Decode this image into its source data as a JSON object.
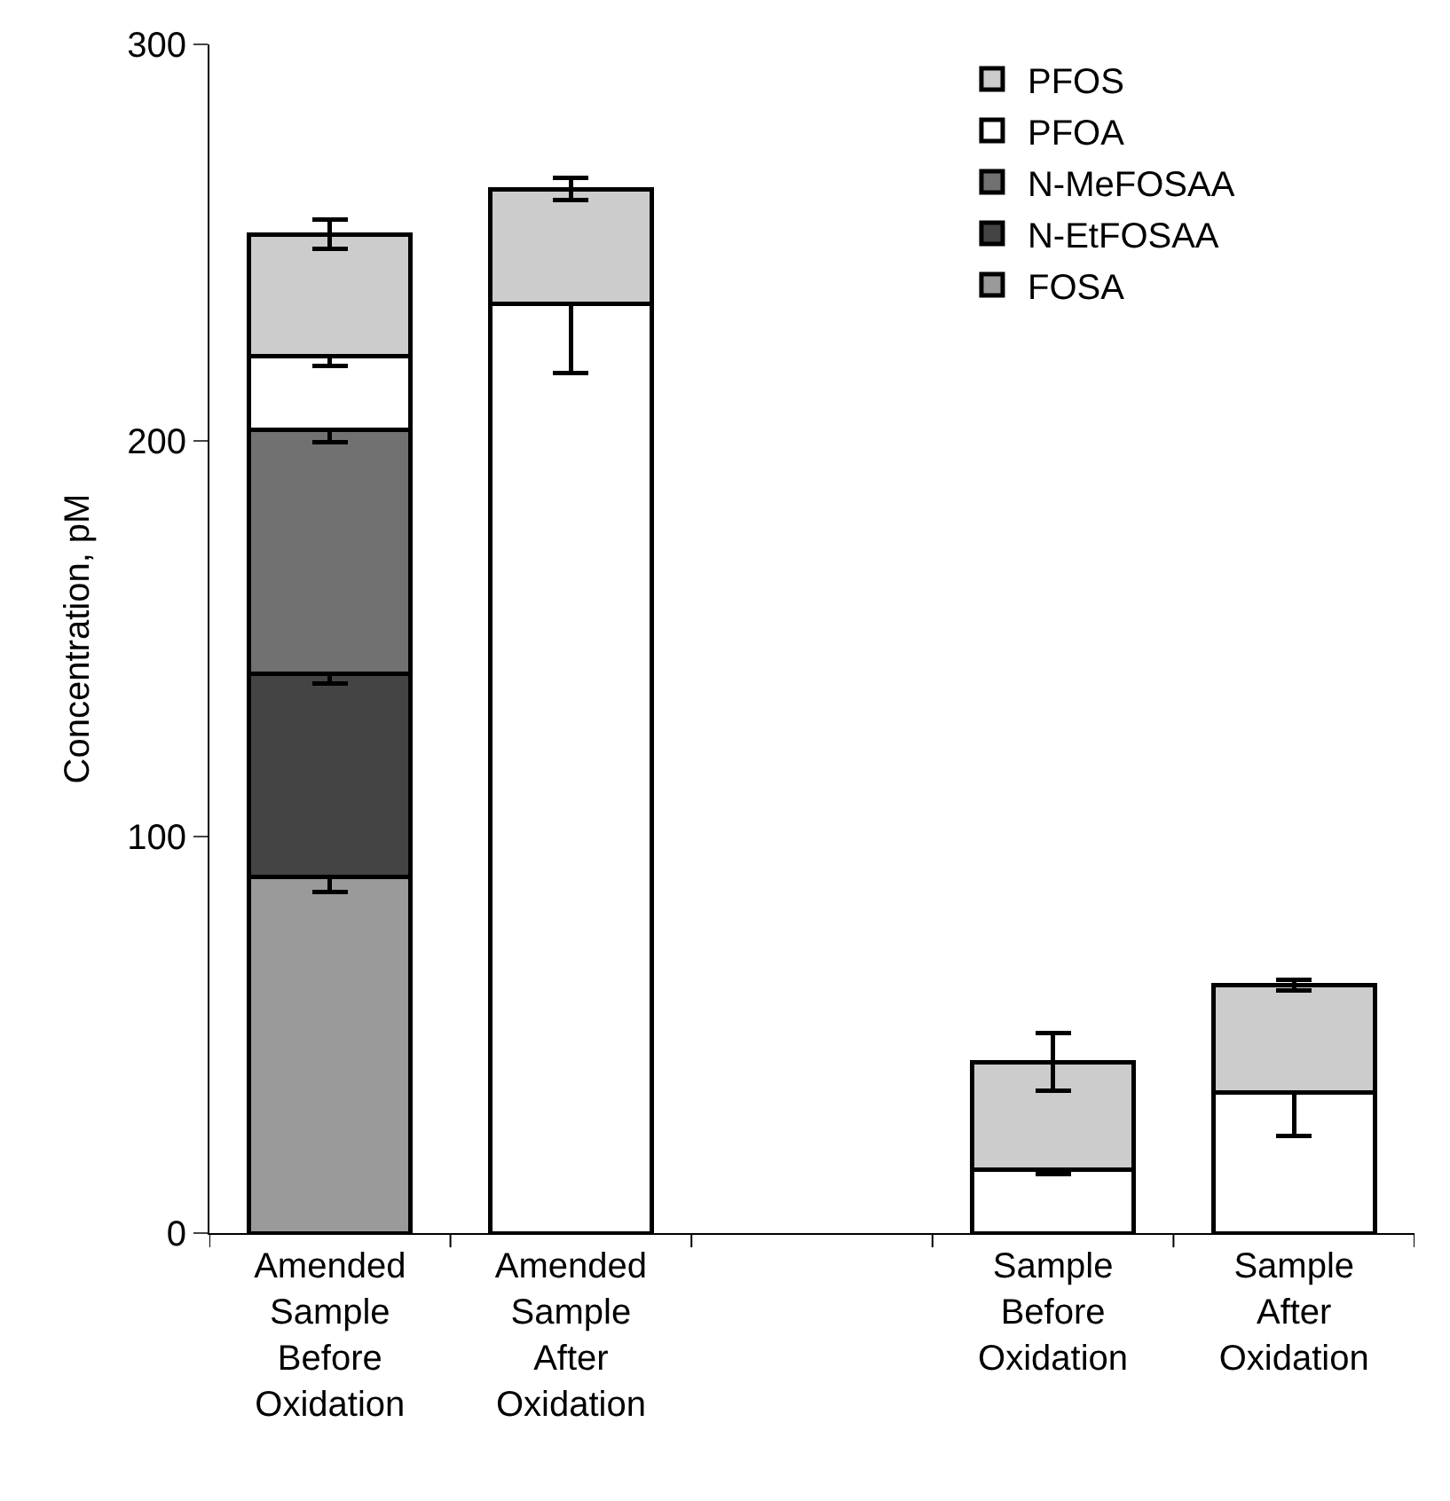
{
  "chart_data": {
    "type": "bar",
    "stacked": true,
    "ylabel": "Concentration, pM",
    "categories": [
      "Amended Sample Before Oxidation",
      "Amended Sample After Oxidation",
      null,
      "Sample Before Oxidation",
      "Sample After Oxidation"
    ],
    "series": [
      {
        "name": "FOSA",
        "color": "#9a9a9a",
        "values": [
          90.0,
          null,
          null,
          null,
          null
        ],
        "errors": [
          4,
          null,
          null,
          null,
          null
        ]
      },
      {
        "name": "N-EtFOSAA",
        "color": "#444444",
        "values": [
          51.2,
          null,
          null,
          null,
          null
        ],
        "errors": [
          2.5,
          null,
          null,
          null,
          null
        ]
      },
      {
        "name": "N-MeFOSAA",
        "color": "#717171",
        "values": [
          61.5,
          null,
          null,
          null,
          null
        ],
        "errors": [
          3,
          null,
          null,
          null,
          null
        ]
      },
      {
        "name": "PFOA",
        "color": "#ffffff",
        "values": [
          18.5,
          234.5,
          null,
          16.0,
          35.4
        ],
        "errors": [
          2.3,
          17.5,
          null,
          1,
          10.8
        ]
      },
      {
        "name": "PFOS",
        "color": "#cccccc",
        "values": [
          30.8,
          29.0,
          null,
          27.2,
          27.2
        ],
        "errors": [
          3.7,
          2.8,
          null,
          7.2,
          1.3
        ]
      }
    ],
    "ylim": [
      0,
      300
    ],
    "yticks": [
      0,
      100,
      200,
      300
    ],
    "grid": false,
    "legend": "top right"
  }
}
